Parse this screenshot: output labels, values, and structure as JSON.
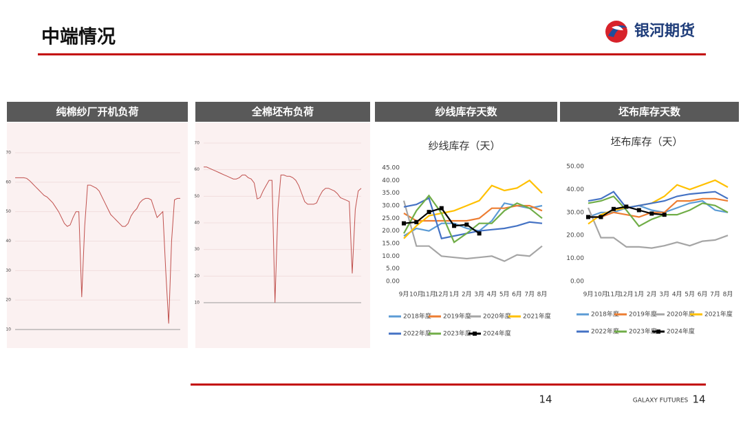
{
  "header": {
    "title": "中端情况",
    "logo": "银河期货"
  },
  "chart_data": [
    {
      "type": "line",
      "header": "纯棉纱厂开机负荷",
      "ylim": [
        10,
        70
      ],
      "yticks": [
        10,
        20,
        30,
        40,
        50,
        60,
        70
      ],
      "series": [
        {
          "color": "#c0504d",
          "values": [
            61.5,
            61.5,
            61.5,
            61.5,
            61.3,
            60.5,
            59.5,
            58.5,
            57.5,
            56.5,
            55.5,
            55,
            54,
            53,
            51.5,
            50,
            48,
            46,
            45,
            45.5,
            48,
            50,
            50,
            21,
            45,
            59,
            59,
            58.5,
            58,
            57,
            55,
            53,
            51,
            49,
            48,
            47,
            46,
            45,
            45,
            46,
            48.5,
            50,
            51,
            53,
            54,
            54.5,
            54.5,
            54,
            51,
            48,
            49,
            50,
            30,
            12,
            40,
            54,
            54.5,
            54.5
          ]
        }
      ]
    },
    {
      "type": "line",
      "header": "全棉坯布负荷",
      "ylim": [
        10,
        70
      ],
      "yticks": [
        10,
        20,
        30,
        40,
        50,
        60,
        70
      ],
      "series": [
        {
          "color": "#c0504d",
          "values": [
            61,
            61,
            60.5,
            60,
            59.5,
            59,
            58.5,
            58,
            57.5,
            57,
            56.5,
            56.5,
            57,
            58,
            58,
            57,
            56.5,
            55,
            49,
            49.5,
            52,
            54,
            56,
            56,
            10,
            45,
            58,
            58,
            57.5,
            57.5,
            57,
            56,
            54,
            51,
            48,
            47,
            47,
            47,
            47.5,
            50,
            52,
            53,
            53,
            52.5,
            52,
            51,
            49.5,
            49,
            48.5,
            48,
            21,
            45,
            52,
            53
          ]
        }
      ]
    },
    {
      "type": "line",
      "header": "纱线库存天数",
      "title": "纱线库存（天）",
      "categories": [
        "9月",
        "10月",
        "11月",
        "12月",
        "1月",
        "2月",
        "3月",
        "4月",
        "5月",
        "6月",
        "7月",
        "8月"
      ],
      "ylim": [
        0,
        45
      ],
      "yticks": [
        {
          "value": 0,
          "label": "0.00"
        },
        {
          "value": 5,
          "label": "5.00"
        },
        {
          "value": 10,
          "label": "10.00"
        },
        {
          "value": 15,
          "label": "15.00"
        },
        {
          "value": 20,
          "label": "20.00"
        },
        {
          "value": 25,
          "label": "25.00"
        },
        {
          "value": 30,
          "label": "30.00"
        },
        {
          "value": 35,
          "label": "35.00"
        },
        {
          "value": 40,
          "label": "40.00"
        },
        {
          "value": 45,
          "label": "45.00"
        }
      ],
      "series": [
        {
          "name": "2018年度",
          "color": "#5b9bd5",
          "values": [
            18,
            21,
            20,
            23,
            23,
            21,
            20,
            24,
            31,
            30,
            29,
            30
          ]
        },
        {
          "name": "2019年度",
          "color": "#ed7d31",
          "values": [
            27,
            24,
            24,
            24,
            24,
            24,
            25,
            29,
            29,
            30,
            30,
            28
          ]
        },
        {
          "name": "2020年度",
          "color": "#a5a5a5",
          "values": [
            32,
            14,
            14,
            10,
            9.5,
            9,
            9.5,
            10,
            8,
            10.5,
            10,
            14
          ]
        },
        {
          "name": "2021年度",
          "color": "#ffc000",
          "values": [
            17,
            22,
            26,
            27,
            28,
            30,
            32,
            38,
            36,
            37,
            40,
            35
          ]
        },
        {
          "name": "2022年度",
          "color": "#4472c4",
          "values": [
            29.5,
            30.5,
            33,
            17,
            18,
            19,
            20,
            20.5,
            21,
            22,
            23.5,
            23
          ]
        },
        {
          "name": "2023年度",
          "color": "#70ad47",
          "values": [
            19,
            28,
            34,
            27,
            15.5,
            19,
            23,
            23,
            28,
            31,
            29,
            25
          ]
        },
        {
          "name": "2024年度",
          "color": "#000000",
          "marker": true,
          "values": [
            23,
            23.5,
            27.5,
            29,
            22,
            22.5,
            19,
            null,
            null,
            null,
            null,
            null
          ]
        }
      ]
    },
    {
      "type": "line",
      "header": "坯布库存天数",
      "title": "坯布库存（天）",
      "categories": [
        "9月",
        "10月",
        "11月",
        "12月",
        "1月",
        "2月",
        "3月",
        "4月",
        "5月",
        "6月",
        "7月",
        "8月"
      ],
      "ylim": [
        0,
        50
      ],
      "yticks": [
        {
          "value": 0,
          "label": "0.00"
        },
        {
          "value": 10,
          "label": "10.00"
        },
        {
          "value": 20,
          "label": "20.00"
        },
        {
          "value": 30,
          "label": "30.00"
        },
        {
          "value": 40,
          "label": "40.00"
        },
        {
          "value": 50,
          "label": "50.00"
        }
      ],
      "series": [
        {
          "name": "2018年度",
          "color": "#5b9bd5",
          "values": [
            28,
            30,
            30,
            32,
            33,
            31,
            30,
            32,
            34,
            35,
            31,
            30
          ]
        },
        {
          "name": "2019年度",
          "color": "#ed7d31",
          "values": [
            28,
            28,
            30,
            29,
            28,
            30,
            30,
            35,
            35,
            36,
            36,
            35
          ]
        },
        {
          "name": "2020年度",
          "color": "#a5a5a5",
          "values": [
            32,
            19,
            19,
            15,
            15,
            14.5,
            15.5,
            17,
            15.5,
            17.5,
            18,
            20
          ]
        },
        {
          "name": "2021年度",
          "color": "#ffc000",
          "values": [
            25,
            29,
            31,
            32,
            33,
            34,
            37,
            42,
            40,
            42,
            44,
            41
          ]
        },
        {
          "name": "2022年度",
          "color": "#4472c4",
          "values": [
            35,
            36,
            39,
            32,
            33,
            34,
            35,
            37,
            38,
            38.5,
            39,
            36
          ]
        },
        {
          "name": "2023年度",
          "color": "#70ad47",
          "values": [
            34,
            35,
            37,
            31,
            24,
            27,
            29,
            29,
            31,
            34,
            33,
            30
          ]
        },
        {
          "name": "2024年度",
          "color": "#000000",
          "marker": true,
          "values": [
            28,
            28,
            31.5,
            32.5,
            31,
            29.5,
            29,
            null,
            null,
            null,
            null,
            null
          ]
        }
      ]
    }
  ],
  "footer": {
    "page": "14",
    "brand": "GALAXY FUTURES",
    "page_right": "14"
  }
}
